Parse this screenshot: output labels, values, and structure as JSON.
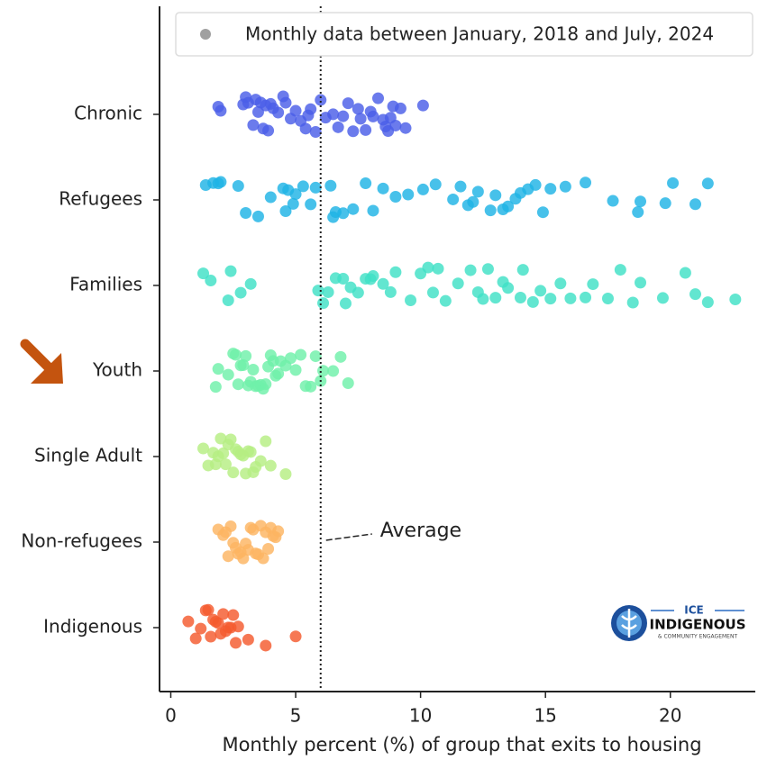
{
  "chart_data": {
    "type": "strip",
    "x_label": "Monthly percent (%) of group that exits to housing",
    "legend_label": "Monthly data between January, 2018 and July, 2024",
    "legend_color": "#a0a0a0",
    "legend_position": "top-right",
    "categories": [
      "Chronic",
      "Refugees",
      "Families",
      "Youth",
      "Single Adult",
      "Non-refugees",
      "Indigenous"
    ],
    "colors": [
      "#4a5ee8",
      "#1fb3e5",
      "#3fe0c6",
      "#6ff0aa",
      "#b6ee82",
      "#fdb462",
      "#f45a2e"
    ],
    "values": [
      [
        1.9,
        2.0,
        2.9,
        3.0,
        3.1,
        3.3,
        3.4,
        3.5,
        3.6,
        3.7,
        3.8,
        3.9,
        4.0,
        4.1,
        4.3,
        4.5,
        4.6,
        4.8,
        5.0,
        5.2,
        5.4,
        5.5,
        5.6,
        5.8,
        6.0,
        6.2,
        6.5,
        6.7,
        6.9,
        7.1,
        7.3,
        7.5,
        7.6,
        7.8,
        8.0,
        8.1,
        8.3,
        8.5,
        8.6,
        8.7,
        8.8,
        8.9,
        9.0,
        9.2,
        9.4,
        10.1
      ],
      [
        1.4,
        1.7,
        1.9,
        2.0,
        2.7,
        3.0,
        3.5,
        4.0,
        4.5,
        4.6,
        4.7,
        4.9,
        5.0,
        5.3,
        5.6,
        5.8,
        6.4,
        6.5,
        6.6,
        6.9,
        7.3,
        7.8,
        8.1,
        8.5,
        9.0,
        9.5,
        10.1,
        10.6,
        11.3,
        11.6,
        11.9,
        12.1,
        12.3,
        12.8,
        13.0,
        13.3,
        13.5,
        13.8,
        14.0,
        14.3,
        14.6,
        14.9,
        15.2,
        15.8,
        16.6,
        17.7,
        18.7,
        18.8,
        19.8,
        20.1,
        21.0,
        21.5
      ],
      [
        1.3,
        1.6,
        2.3,
        2.4,
        2.8,
        3.2,
        5.9,
        6.1,
        6.3,
        6.6,
        6.9,
        7.0,
        7.2,
        7.5,
        7.8,
        8.0,
        8.1,
        8.5,
        8.8,
        9.0,
        9.6,
        10.0,
        10.3,
        10.5,
        10.7,
        11.0,
        11.5,
        12.0,
        12.3,
        12.5,
        12.7,
        13.0,
        13.3,
        13.5,
        14.0,
        14.1,
        14.5,
        14.8,
        15.2,
        15.6,
        16.0,
        16.6,
        16.9,
        17.5,
        18.0,
        18.5,
        18.8,
        19.7,
        20.6,
        21.0,
        21.5,
        22.6
      ],
      [
        1.8,
        1.9,
        2.3,
        2.5,
        2.6,
        2.7,
        2.8,
        2.9,
        3.0,
        3.1,
        3.2,
        3.3,
        3.4,
        3.5,
        3.6,
        3.7,
        3.8,
        3.9,
        4.0,
        4.1,
        4.2,
        4.3,
        4.4,
        4.6,
        4.8,
        5.0,
        5.2,
        5.4,
        5.6,
        5.8,
        6.0,
        6.1,
        6.5,
        6.8,
        7.1
      ],
      [
        1.3,
        1.5,
        1.7,
        1.8,
        1.9,
        2.0,
        2.1,
        2.2,
        2.3,
        2.4,
        2.5,
        2.6,
        2.7,
        2.8,
        2.9,
        3.0,
        3.1,
        3.2,
        3.3,
        3.4,
        3.6,
        3.8,
        4.0,
        4.6
      ],
      [
        1.9,
        2.1,
        2.2,
        2.3,
        2.4,
        2.5,
        2.6,
        2.7,
        2.8,
        2.9,
        3.0,
        3.1,
        3.2,
        3.3,
        3.4,
        3.5,
        3.6,
        3.7,
        3.8,
        3.9,
        4.0,
        4.1,
        4.2,
        4.3
      ],
      [
        0.7,
        1.0,
        1.2,
        1.4,
        1.5,
        1.6,
        1.7,
        1.8,
        1.9,
        2.0,
        2.1,
        2.2,
        2.3,
        2.4,
        2.5,
        2.6,
        2.7,
        3.1,
        3.8,
        5.0
      ]
    ],
    "average": 6,
    "average_label": "Average",
    "xlim": [
      -0.45,
      23.4
    ],
    "xticks": [
      0,
      5,
      10,
      15,
      20
    ]
  },
  "logo": {
    "top": "ICE",
    "name": "INDIGENOUS",
    "tagline": "& COMMUNITY ENGAGEMENT"
  }
}
